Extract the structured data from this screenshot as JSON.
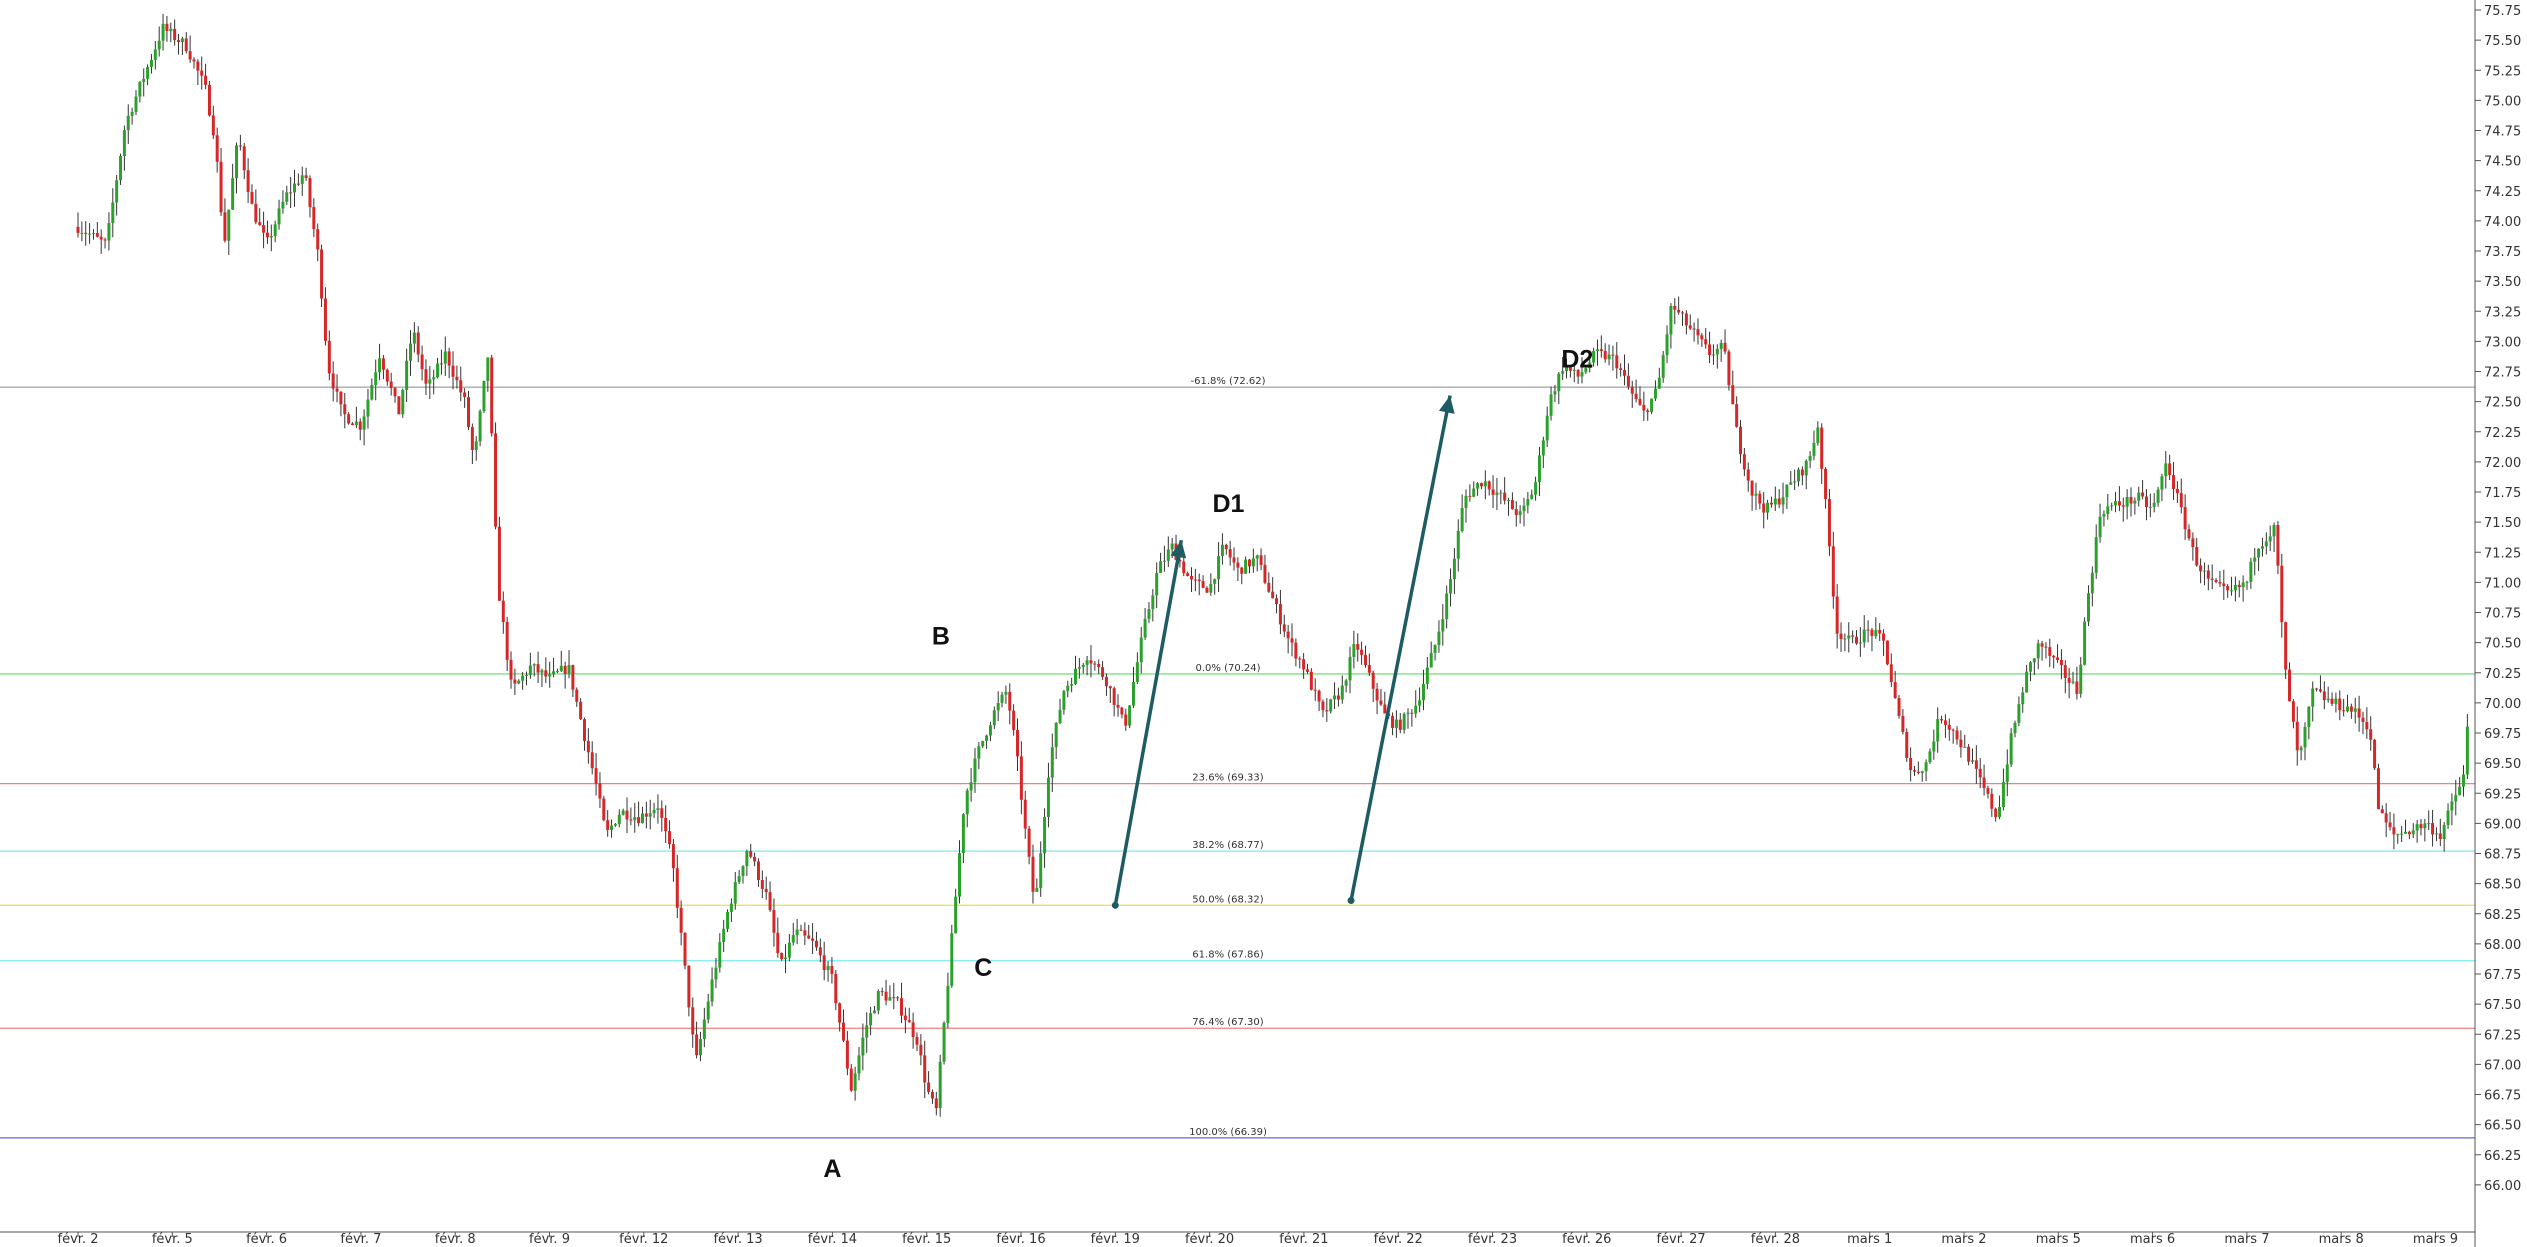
{
  "chart_data": {
    "type": "candlestick",
    "ylim": [
      65.75,
      75.75
    ],
    "y_ticks": [
      "75.75",
      "75.50",
      "75.25",
      "75.00",
      "74.75",
      "74.50",
      "74.25",
      "74.00",
      "73.75",
      "73.50",
      "73.25",
      "73.00",
      "72.75",
      "72.50",
      "72.25",
      "72.00",
      "71.75",
      "71.50",
      "71.25",
      "71.00",
      "70.75",
      "70.50",
      "70.25",
      "70.00",
      "69.75",
      "69.50",
      "69.25",
      "69.00",
      "68.75",
      "68.50",
      "68.25",
      "68.00",
      "67.75",
      "67.50",
      "67.25",
      "67.00",
      "66.75",
      "66.50",
      "66.25",
      "66.00"
    ],
    "x_labels": [
      "févr. 2",
      "févr. 5",
      "févr. 6",
      "févr. 7",
      "févr. 8",
      "févr. 9",
      "févr. 12",
      "févr. 13",
      "févr. 14",
      "févr. 15",
      "févr. 16",
      "févr. 19",
      "févr. 20",
      "févr. 21",
      "févr. 22",
      "févr. 23",
      "févr. 26",
      "févr. 27",
      "févr. 28",
      "mars 1",
      "mars 2",
      "mars 5",
      "mars 6",
      "mars 7",
      "mars 8",
      "mars 9"
    ],
    "colors": {
      "up": "#2ca02c",
      "down": "#d62728",
      "wick": "#333333",
      "arrow": "#1d5c63"
    },
    "fib_levels": [
      {
        "label": "-61.8% (72.62)",
        "value": 72.62,
        "color": "#aaaaaa"
      },
      {
        "label": "0.0% (70.24)",
        "value": 70.24,
        "color": "#7fe07f"
      },
      {
        "label": "23.6% (69.33)",
        "value": 69.33,
        "color": "#f08080"
      },
      {
        "label": "38.2% (68.77)",
        "value": 68.77,
        "color": "#7fe8f0"
      },
      {
        "label": "50.0% (68.32)",
        "value": 68.32,
        "color": "#f0e060"
      },
      {
        "label": "61.8% (67.86)",
        "value": 67.86,
        "color": "#7fe8f0"
      },
      {
        "label": "76.4% (67.30)",
        "value": 67.3,
        "color": "#f08080"
      },
      {
        "label": "100.0% (66.39)",
        "value": 66.39,
        "color": "#5a6fd0"
      }
    ],
    "points": [
      {
        "label": "A",
        "x": 8.0,
        "y": 66.13
      },
      {
        "label": "B",
        "x": 9.15,
        "y": 70.55
      },
      {
        "label": "C",
        "x": 9.6,
        "y": 67.8
      },
      {
        "label": "D1",
        "x": 12.2,
        "y": 71.65
      },
      {
        "label": "D2",
        "x": 15.9,
        "y": 72.85
      }
    ],
    "arrows": [
      {
        "x1": 11.0,
        "y1": 68.32,
        "x2": 11.7,
        "y2": 71.35
      },
      {
        "x1": 13.5,
        "y1": 68.36,
        "x2": 14.55,
        "y2": 72.55
      }
    ],
    "series_path": [
      [
        0.0,
        73.95
      ],
      [
        0.3,
        73.8
      ],
      [
        0.5,
        74.8
      ],
      [
        0.7,
        75.2
      ],
      [
        0.9,
        75.6
      ],
      [
        1.15,
        75.45
      ],
      [
        1.35,
        75.1
      ],
      [
        1.45,
        74.7
      ],
      [
        1.55,
        73.8
      ],
      [
        1.7,
        74.7
      ],
      [
        1.85,
        74.1
      ],
      [
        2.0,
        73.8
      ],
      [
        2.2,
        74.2
      ],
      [
        2.4,
        74.4
      ],
      [
        2.55,
        73.7
      ],
      [
        2.65,
        72.8
      ],
      [
        2.8,
        72.4
      ],
      [
        3.0,
        72.3
      ],
      [
        3.2,
        72.9
      ],
      [
        3.4,
        72.4
      ],
      [
        3.55,
        73.1
      ],
      [
        3.7,
        72.6
      ],
      [
        3.9,
        72.9
      ],
      [
        4.1,
        72.5
      ],
      [
        4.2,
        72.0
      ],
      [
        4.35,
        72.9
      ],
      [
        4.45,
        71.0
      ],
      [
        4.6,
        70.1
      ],
      [
        4.8,
        70.3
      ],
      [
        5.0,
        70.2
      ],
      [
        5.2,
        70.3
      ],
      [
        5.35,
        69.8
      ],
      [
        5.5,
        69.3
      ],
      [
        5.6,
        68.9
      ],
      [
        5.75,
        69.1
      ],
      [
        5.95,
        69.05
      ],
      [
        6.15,
        69.15
      ],
      [
        6.3,
        68.7
      ],
      [
        6.45,
        67.7
      ],
      [
        6.55,
        67.0
      ],
      [
        6.7,
        67.6
      ],
      [
        6.9,
        68.3
      ],
      [
        7.1,
        68.8
      ],
      [
        7.3,
        68.4
      ],
      [
        7.45,
        67.8
      ],
      [
        7.6,
        68.1
      ],
      [
        7.8,
        68.0
      ],
      [
        8.0,
        67.7
      ],
      [
        8.2,
        66.8
      ],
      [
        8.35,
        67.3
      ],
      [
        8.5,
        67.6
      ],
      [
        8.7,
        67.5
      ],
      [
        8.9,
        67.2
      ],
      [
        9.0,
        66.8
      ],
      [
        9.1,
        66.6
      ],
      [
        9.25,
        67.9
      ],
      [
        9.4,
        69.2
      ],
      [
        9.55,
        69.6
      ],
      [
        9.7,
        69.9
      ],
      [
        9.85,
        70.1
      ],
      [
        9.95,
        69.6
      ],
      [
        10.05,
        68.9
      ],
      [
        10.15,
        68.3
      ],
      [
        10.3,
        69.5
      ],
      [
        10.45,
        70.1
      ],
      [
        10.7,
        70.4
      ],
      [
        10.9,
        70.2
      ],
      [
        11.1,
        69.8
      ],
      [
        11.3,
        70.6
      ],
      [
        11.45,
        71.1
      ],
      [
        11.6,
        71.3
      ],
      [
        11.8,
        71.0
      ],
      [
        12.0,
        70.95
      ],
      [
        12.15,
        71.3
      ],
      [
        12.3,
        71.1
      ],
      [
        12.5,
        71.2
      ],
      [
        12.7,
        70.8
      ],
      [
        12.85,
        70.5
      ],
      [
        13.0,
        70.3
      ],
      [
        13.2,
        69.9
      ],
      [
        13.4,
        70.1
      ],
      [
        13.55,
        70.5
      ],
      [
        13.7,
        70.2
      ],
      [
        13.85,
        69.9
      ],
      [
        14.0,
        69.8
      ],
      [
        14.2,
        70.0
      ],
      [
        14.4,
        70.5
      ],
      [
        14.55,
        71.0
      ],
      [
        14.7,
        71.7
      ],
      [
        14.9,
        71.85
      ],
      [
        15.1,
        71.7
      ],
      [
        15.3,
        71.55
      ],
      [
        15.45,
        71.8
      ],
      [
        15.6,
        72.5
      ],
      [
        15.75,
        72.8
      ],
      [
        15.9,
        72.7
      ],
      [
        16.1,
        72.9
      ],
      [
        16.3,
        72.85
      ],
      [
        16.45,
        72.6
      ],
      [
        16.6,
        72.4
      ],
      [
        16.75,
        72.6
      ],
      [
        16.9,
        73.3
      ],
      [
        17.1,
        73.1
      ],
      [
        17.3,
        72.9
      ],
      [
        17.45,
        72.95
      ],
      [
        17.6,
        72.2
      ],
      [
        17.75,
        71.75
      ],
      [
        17.9,
        71.6
      ],
      [
        18.05,
        71.7
      ],
      [
        18.2,
        71.85
      ],
      [
        18.35,
        72.0
      ],
      [
        18.45,
        72.3
      ],
      [
        18.55,
        71.5
      ],
      [
        18.65,
        70.6
      ],
      [
        18.8,
        70.5
      ],
      [
        19.0,
        70.6
      ],
      [
        19.15,
        70.5
      ],
      [
        19.3,
        69.9
      ],
      [
        19.45,
        69.4
      ],
      [
        19.6,
        69.5
      ],
      [
        19.75,
        69.9
      ],
      [
        19.9,
        69.75
      ],
      [
        20.05,
        69.55
      ],
      [
        20.2,
        69.3
      ],
      [
        20.35,
        69.05
      ],
      [
        20.5,
        69.7
      ],
      [
        20.65,
        70.2
      ],
      [
        20.8,
        70.5
      ],
      [
        21.0,
        70.3
      ],
      [
        21.2,
        70.1
      ],
      [
        21.3,
        70.8
      ],
      [
        21.45,
        71.6
      ],
      [
        21.65,
        71.65
      ],
      [
        21.85,
        71.7
      ],
      [
        22.0,
        71.6
      ],
      [
        22.15,
        72.0
      ],
      [
        22.3,
        71.6
      ],
      [
        22.45,
        71.2
      ],
      [
        22.6,
        71.0
      ],
      [
        22.8,
        70.9
      ],
      [
        23.0,
        71.0
      ],
      [
        23.1,
        71.3
      ],
      [
        23.3,
        71.45
      ],
      [
        23.4,
        70.3
      ],
      [
        23.55,
        69.5
      ],
      [
        23.7,
        70.1
      ],
      [
        23.9,
        70.0
      ],
      [
        24.1,
        69.95
      ],
      [
        24.3,
        69.8
      ],
      [
        24.4,
        69.1
      ],
      [
        24.55,
        68.9
      ],
      [
        24.75,
        68.95
      ],
      [
        24.9,
        69.0
      ],
      [
        25.05,
        68.9
      ],
      [
        25.2,
        69.2
      ],
      [
        25.3,
        69.4
      ],
      [
        25.35,
        69.9
      ]
    ]
  }
}
